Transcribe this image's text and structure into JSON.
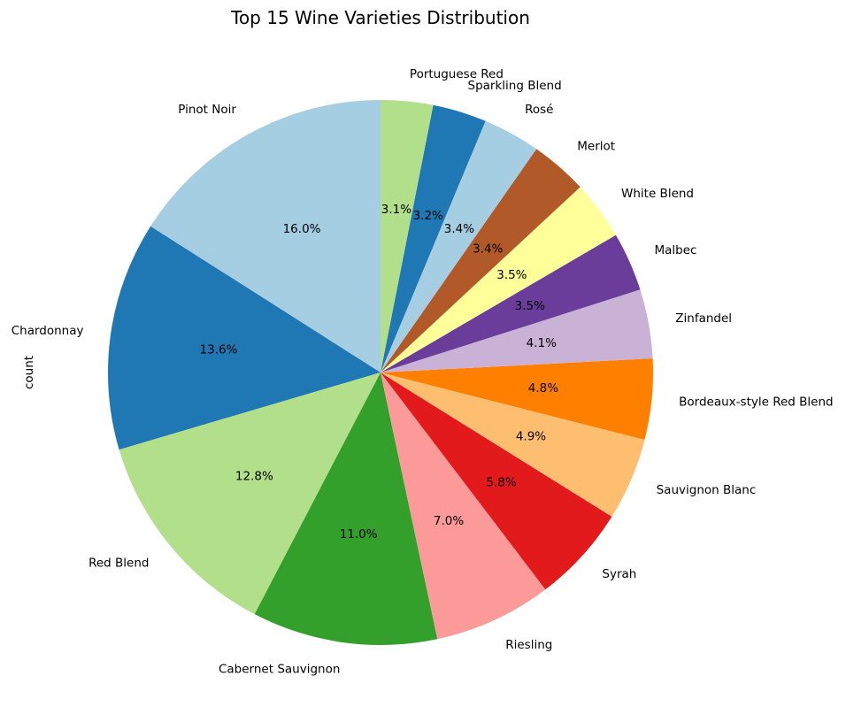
{
  "chart_data": {
    "type": "pie",
    "title": "Top 15 Wine Varieties Distribution",
    "ylabel": "count",
    "start_angle_deg": 90,
    "direction": "counterclockwise",
    "slices": [
      {
        "label": "Pinot Noir",
        "pct": 16.0,
        "pct_label": "16.0%",
        "color": "#a6cee3"
      },
      {
        "label": "Chardonnay",
        "pct": 13.6,
        "pct_label": "13.6%",
        "color": "#1f78b4"
      },
      {
        "label": "Red Blend",
        "pct": 12.8,
        "pct_label": "12.8%",
        "color": "#b2df8a"
      },
      {
        "label": "Cabernet Sauvignon",
        "pct": 11.0,
        "pct_label": "11.0%",
        "color": "#33a02c"
      },
      {
        "label": "Riesling",
        "pct": 7.0,
        "pct_label": "7.0%",
        "color": "#fb9a99"
      },
      {
        "label": "Syrah",
        "pct": 5.8,
        "pct_label": "5.8%",
        "color": "#e31a1c"
      },
      {
        "label": "Sauvignon Blanc",
        "pct": 4.9,
        "pct_label": "4.9%",
        "color": "#fdbf6f"
      },
      {
        "label": "Bordeaux-style Red Blend",
        "pct": 4.8,
        "pct_label": "4.8%",
        "color": "#ff7f00"
      },
      {
        "label": "Zinfandel",
        "pct": 4.1,
        "pct_label": "4.1%",
        "color": "#cab2d6"
      },
      {
        "label": "Malbec",
        "pct": 3.5,
        "pct_label": "3.5%",
        "color": "#6a3d9a"
      },
      {
        "label": "White Blend",
        "pct": 3.5,
        "pct_label": "3.5%",
        "color": "#ffff99"
      },
      {
        "label": "Merlot",
        "pct": 3.4,
        "pct_label": "3.4%",
        "color": "#b15928"
      },
      {
        "label": "Rosé",
        "pct": 3.4,
        "pct_label": "3.4%",
        "color": "#a6cee3"
      },
      {
        "label": "Sparkling Blend",
        "pct": 3.2,
        "pct_label": "3.2%",
        "color": "#1f78b4"
      },
      {
        "label": "Portuguese Red",
        "pct": 3.1,
        "pct_label": "3.1%",
        "color": "#b2df8a"
      }
    ]
  }
}
